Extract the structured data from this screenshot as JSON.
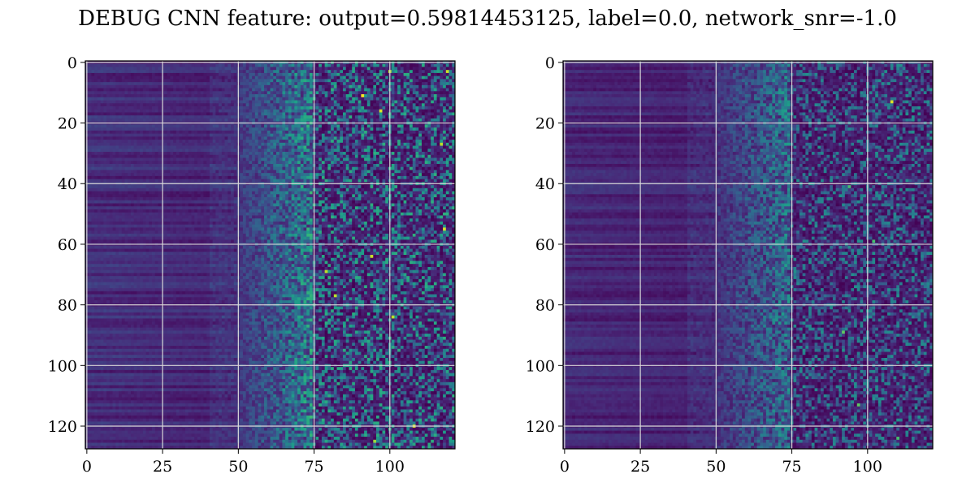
{
  "chart_data": {
    "type": "heatmap",
    "title": "DEBUG CNN feature: output=0.59814453125, label=0.0, network_snr=-1.0",
    "colormap": "viridis",
    "grid": true,
    "panels": [
      {
        "name": "left",
        "rows": 128,
        "cols": 122,
        "xlim": [
          -0.5,
          121.5
        ],
        "ylim": [
          127.5,
          -0.5
        ],
        "xticks": [
          0,
          25,
          50,
          75,
          100
        ],
        "yticks": [
          0,
          20,
          40,
          60,
          80,
          100,
          120
        ],
        "value_range": [
          0,
          1
        ],
        "intensity_profile": {
          "left_band_cols": [
            0,
            50
          ],
          "left_band_level": 0.12,
          "transition_cols": [
            50,
            75
          ],
          "right_band_level": 0.35
        },
        "bright_cells": [
          {
            "x": 91,
            "y": 11,
            "v": 1.0
          },
          {
            "x": 97,
            "y": 16,
            "v": 0.95
          },
          {
            "x": 117,
            "y": 27,
            "v": 0.9
          },
          {
            "x": 118,
            "y": 55,
            "v": 0.95
          },
          {
            "x": 94,
            "y": 64,
            "v": 0.92
          },
          {
            "x": 79,
            "y": 69,
            "v": 0.9
          },
          {
            "x": 82,
            "y": 77,
            "v": 0.9
          },
          {
            "x": 101,
            "y": 84,
            "v": 0.9
          },
          {
            "x": 108,
            "y": 120,
            "v": 0.95
          },
          {
            "x": 100,
            "y": 3,
            "v": 0.9
          },
          {
            "x": 119,
            "y": 3,
            "v": 0.92
          },
          {
            "x": 95,
            "y": 125,
            "v": 0.85
          }
        ]
      },
      {
        "name": "right",
        "rows": 128,
        "cols": 122,
        "xlim": [
          -0.5,
          121.5
        ],
        "ylim": [
          127.5,
          -0.5
        ],
        "xticks": [
          0,
          25,
          50,
          75,
          100
        ],
        "yticks": [
          0,
          20,
          40,
          60,
          80,
          100,
          120
        ],
        "value_range": [
          0,
          1
        ],
        "intensity_profile": {
          "left_band_cols": [
            0,
            50
          ],
          "left_band_level": 0.1,
          "transition_cols": [
            50,
            75
          ],
          "right_band_level": 0.28
        },
        "bright_cells": [
          {
            "x": 108,
            "y": 13,
            "v": 0.95
          },
          {
            "x": 94,
            "y": 41,
            "v": 0.7
          },
          {
            "x": 92,
            "y": 89,
            "v": 0.75
          },
          {
            "x": 97,
            "y": 113,
            "v": 0.75
          },
          {
            "x": 102,
            "y": 59,
            "v": 0.7
          },
          {
            "x": 110,
            "y": 124,
            "v": 0.7
          }
        ]
      }
    ]
  },
  "colors": {
    "grid": "#d9d9d9",
    "frame": "#000000"
  }
}
